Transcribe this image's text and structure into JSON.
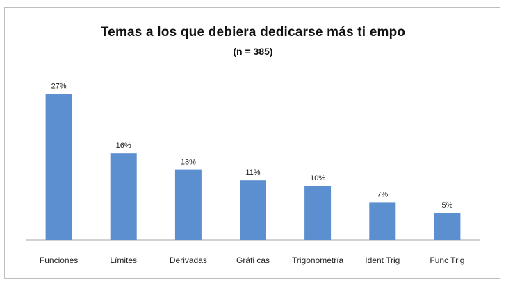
{
  "chart_data": {
    "type": "bar",
    "title": "Temas a los que debiera dedicarse más ti  empo",
    "subtitle": "(n = 385)",
    "categories": [
      "Funciones",
      "Límites",
      "Derivadas",
      "Gráfi  cas",
      "Trigonometría",
      "Ident Trig",
      "Func Trig"
    ],
    "values": [
      27,
      16,
      13,
      11,
      10,
      7,
      5
    ],
    "value_labels": [
      "27%",
      "16%",
      "13%",
      "11%",
      "10%",
      "7%",
      "5%"
    ],
    "ylim": [
      0,
      30
    ],
    "bar_color": "#5b8fd0",
    "grid": false,
    "legend": false
  }
}
